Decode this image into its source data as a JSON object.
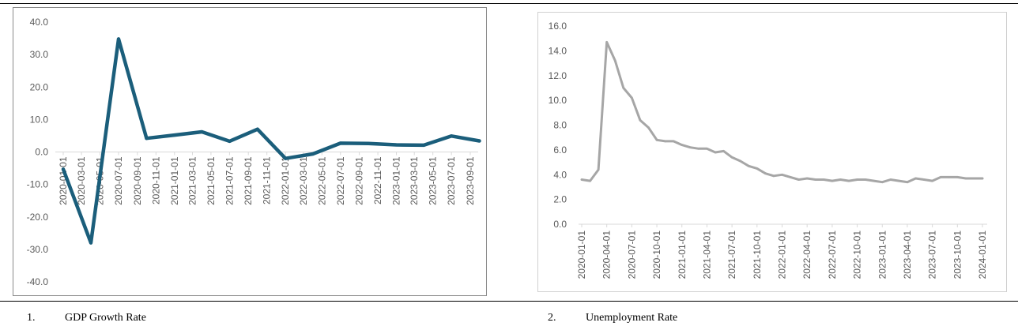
{
  "colors": {
    "gdp_line": "#1b5e7b",
    "unemployment_line": "#a6a6a6",
    "axis": "#d9d9d9",
    "text": "#595959"
  },
  "captions": [
    {
      "number": "1.",
      "text": "GDP Growth Rate"
    },
    {
      "number": "2.",
      "text": "Unemployment Rate"
    }
  ],
  "chart_data": [
    {
      "type": "line",
      "title": "",
      "xlabel": "",
      "ylabel": "",
      "ylim": [
        -40,
        40
      ],
      "y_ticks": [
        "40.0",
        "30.0",
        "20.0",
        "10.0",
        "0.0",
        "-10.0",
        "-20.0",
        "-30.0",
        "-40.0"
      ],
      "x_tick_labels": [
        "2020-01-01",
        "2020-03-01",
        "2020-05-01",
        "2020-07-01",
        "2020-09-01",
        "2020-11-01",
        "2021-01-01",
        "2021-03-01",
        "2021-05-01",
        "2021-07-01",
        "2021-09-01",
        "2021-11-01",
        "2022-01-01",
        "2022-03-01",
        "2022-05-01",
        "2022-07-01",
        "2022-09-01",
        "2022-11-01",
        "2023-01-01",
        "2023-03-01",
        "2023-05-01",
        "2023-07-01",
        "2023-09-01"
      ],
      "series": [
        {
          "x": [
            "2020-01-01",
            "2020-04-01",
            "2020-07-01",
            "2020-10-01",
            "2021-01-01",
            "2021-04-01",
            "2021-07-01",
            "2021-10-01",
            "2022-01-01",
            "2022-04-01",
            "2022-07-01",
            "2022-10-01",
            "2023-01-01",
            "2023-04-01",
            "2023-07-01",
            "2023-10-01"
          ],
          "values": [
            -5.3,
            -28.0,
            34.8,
            4.2,
            5.2,
            6.2,
            3.3,
            7.0,
            -2.0,
            -0.6,
            2.7,
            2.6,
            2.2,
            2.1,
            4.9,
            3.4
          ]
        }
      ],
      "grid": false
    },
    {
      "type": "line",
      "title": "",
      "xlabel": "",
      "ylabel": "",
      "ylim": [
        0,
        16
      ],
      "y_ticks": [
        "16.0",
        "14.0",
        "12.0",
        "10.0",
        "8.0",
        "6.0",
        "4.0",
        "2.0",
        "0.0"
      ],
      "x_tick_labels": [
        "2020-01-01",
        "2020-04-01",
        "2020-07-01",
        "2020-10-01",
        "2021-01-01",
        "2021-04-01",
        "2021-07-01",
        "2021-10-01",
        "2022-01-01",
        "2022-04-01",
        "2022-07-01",
        "2022-10-01",
        "2023-01-01",
        "2023-04-01",
        "2023-07-01",
        "2023-10-01",
        "2024-01-01"
      ],
      "series": [
        {
          "values": [
            3.6,
            3.5,
            4.4,
            14.7,
            13.2,
            11.0,
            10.2,
            8.4,
            7.8,
            6.8,
            6.7,
            6.7,
            6.4,
            6.2,
            6.1,
            6.1,
            5.8,
            5.9,
            5.4,
            5.1,
            4.7,
            4.5,
            4.1,
            3.9,
            4.0,
            3.8,
            3.6,
            3.7,
            3.6,
            3.6,
            3.5,
            3.6,
            3.5,
            3.6,
            3.6,
            3.5,
            3.4,
            3.6,
            3.5,
            3.4,
            3.7,
            3.6,
            3.5,
            3.8,
            3.8,
            3.8,
            3.7,
            3.7,
            3.7
          ]
        }
      ],
      "grid": false
    }
  ]
}
